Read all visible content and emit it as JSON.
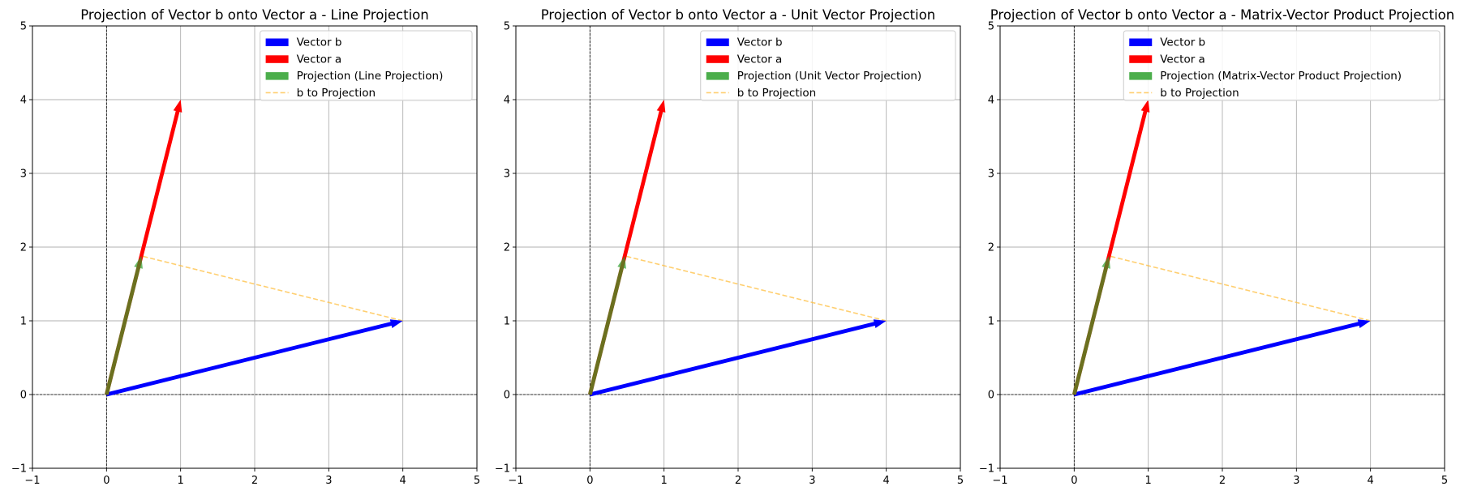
{
  "chart_data": [
    {
      "type": "vector",
      "title": "Projection of Vector b onto Vector a - Line Projection",
      "xlim": [
        -1,
        5
      ],
      "ylim": [
        -1,
        5
      ],
      "xticks": [
        "-1",
        "0",
        "1",
        "2",
        "3",
        "4",
        "5"
      ],
      "yticks": [
        "-1",
        "0",
        "1",
        "2",
        "3",
        "4",
        "5"
      ],
      "grid": true,
      "legend_position": "upper right",
      "vectors": [
        {
          "name": "Vector b",
          "from": [
            0,
            0
          ],
          "to": [
            4,
            1
          ],
          "color": "#0000ff"
        },
        {
          "name": "Vector a",
          "from": [
            0,
            0
          ],
          "to": [
            1,
            4
          ],
          "color": "#ff0000"
        },
        {
          "name": "Projection (Line Projection)",
          "from": [
            0,
            0
          ],
          "to": [
            0.47,
            1.88
          ],
          "color": "#2ca02c"
        }
      ],
      "connector": {
        "name": "b to Projection",
        "from": [
          4,
          1
        ],
        "to": [
          0.47,
          1.88
        ],
        "color": "#ffbf40",
        "style": "dashed"
      }
    },
    {
      "type": "vector",
      "title": "Projection of Vector b onto Vector a - Unit Vector Projection",
      "xlim": [
        -1,
        5
      ],
      "ylim": [
        -1,
        5
      ],
      "xticks": [
        "-1",
        "0",
        "1",
        "2",
        "3",
        "4",
        "5"
      ],
      "yticks": [
        "-1",
        "0",
        "1",
        "2",
        "3",
        "4",
        "5"
      ],
      "grid": true,
      "legend_position": "upper right",
      "vectors": [
        {
          "name": "Vector b",
          "from": [
            0,
            0
          ],
          "to": [
            4,
            1
          ],
          "color": "#0000ff"
        },
        {
          "name": "Vector a",
          "from": [
            0,
            0
          ],
          "to": [
            1,
            4
          ],
          "color": "#ff0000"
        },
        {
          "name": "Projection (Unit Vector Projection)",
          "from": [
            0,
            0
          ],
          "to": [
            0.47,
            1.88
          ],
          "color": "#2ca02c"
        }
      ],
      "connector": {
        "name": "b to Projection",
        "from": [
          4,
          1
        ],
        "to": [
          0.47,
          1.88
        ],
        "color": "#ffbf40",
        "style": "dashed"
      }
    },
    {
      "type": "vector",
      "title": "Projection of Vector b onto Vector a - Matrix-Vector Product Projection",
      "xlim": [
        -1,
        5
      ],
      "ylim": [
        -1,
        5
      ],
      "xticks": [
        "-1",
        "0",
        "1",
        "2",
        "3",
        "4",
        "5"
      ],
      "yticks": [
        "-1",
        "0",
        "1",
        "2",
        "3",
        "4",
        "5"
      ],
      "grid": true,
      "legend_position": "upper right",
      "vectors": [
        {
          "name": "Vector b",
          "from": [
            0,
            0
          ],
          "to": [
            4,
            1
          ],
          "color": "#0000ff"
        },
        {
          "name": "Vector a",
          "from": [
            0,
            0
          ],
          "to": [
            1,
            4
          ],
          "color": "#ff0000"
        },
        {
          "name": "Projection (Matrix-Vector Product Projection)",
          "from": [
            0,
            0
          ],
          "to": [
            0.47,
            1.88
          ],
          "color": "#2ca02c"
        }
      ],
      "connector": {
        "name": "b to Projection",
        "from": [
          4,
          1
        ],
        "to": [
          0.47,
          1.88
        ],
        "color": "#ffbf40",
        "style": "dashed"
      }
    }
  ]
}
